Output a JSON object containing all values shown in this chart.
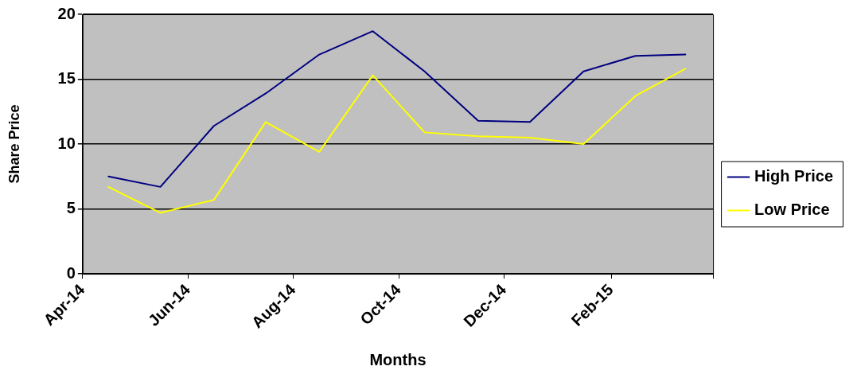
{
  "chart_data": {
    "type": "line",
    "xlabel": "Months",
    "ylabel": "Share Price",
    "x": [
      "2014-04-16",
      "2014-05-16",
      "2014-06-16",
      "2014-07-16",
      "2014-08-16",
      "2014-09-16",
      "2014-10-16",
      "2014-11-16",
      "2014-12-16",
      "2015-01-16",
      "2015-02-15",
      "2015-03-16"
    ],
    "series": [
      {
        "name": "High Price",
        "color": "#000080",
        "values": [
          7.5,
          6.7,
          11.4,
          13.9,
          16.9,
          18.7,
          15.6,
          11.8,
          11.7,
          15.6,
          16.8,
          16.9
        ]
      },
      {
        "name": "Low Price",
        "color": "#ffff00",
        "values": [
          6.7,
          4.7,
          5.7,
          11.7,
          9.4,
          15.3,
          10.9,
          10.6,
          10.5,
          10.0,
          13.7,
          15.8
        ]
      }
    ],
    "xlim": [
      "2014-04",
      "2015-04"
    ],
    "xticks": [
      {
        "value": "2014-04",
        "label": "Apr-14"
      },
      {
        "value": "2014-06",
        "label": "Jun-14"
      },
      {
        "value": "2014-08",
        "label": "Aug-14"
      },
      {
        "value": "2014-10",
        "label": "Oct-14"
      },
      {
        "value": "2014-12",
        "label": "Dec-14"
      },
      {
        "value": "2015-02",
        "label": "Feb-15"
      },
      {
        "value": "2015-04",
        "label": null
      }
    ],
    "ylim": [
      0,
      20
    ],
    "yticks": [
      0,
      5,
      10,
      15,
      20
    ],
    "grid": "y",
    "legend": "right",
    "marker": "none",
    "line_style": "solid"
  }
}
